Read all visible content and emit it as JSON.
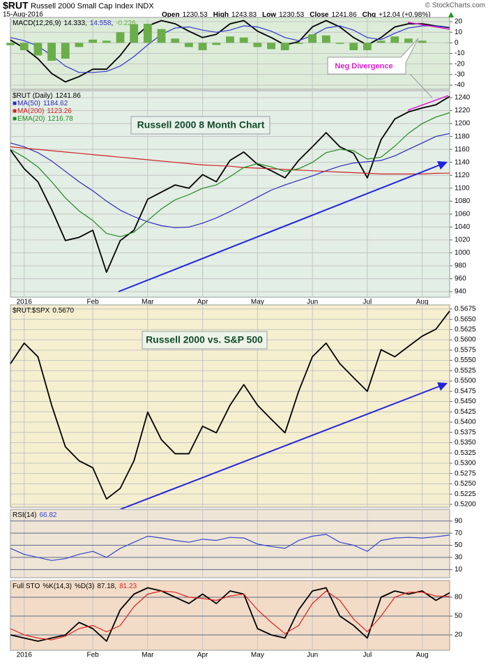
{
  "header": {
    "symbol": "$RUT",
    "name": "Russell 2000 Small Cap Index INDX",
    "date": "15-Aug-2016",
    "credit": "© StockCharts.com",
    "quote": [
      {
        "label": "Open",
        "value": 1230.53
      },
      {
        "label": "High",
        "value": 1243.83
      },
      {
        "label": "Low",
        "value": 1230.53
      },
      {
        "label": "Close",
        "value": 1241.86
      },
      {
        "label": "Chg",
        "value": 12.04,
        "value_label": "+12.04 (+0.98%)"
      }
    ]
  },
  "chart_data": [
    {
      "type": "line",
      "label": "MACD(12,26,9)",
      "annotation": "Neg Divergence",
      "grid": true,
      "categories": [
        null,
        "2016",
        null,
        null,
        null,
        null,
        "Feb",
        null,
        null,
        null,
        "Mar",
        null,
        null,
        null,
        "Apr",
        null,
        null,
        null,
        "May",
        null,
        null,
        null,
        "Jun",
        null,
        null,
        null,
        "Jul",
        null,
        null,
        null,
        "Aug",
        null,
        null
      ],
      "ylim": [
        -44,
        24
      ],
      "yticks": [
        20,
        10,
        0,
        -10,
        -20,
        -30,
        -40
      ],
      "series": [
        {
          "color": "#000000",
          "last_value": 14.333,
          "values": [
            2.7,
            -5,
            -15,
            -29,
            -37,
            -32,
            -25,
            -25,
            -12,
            4.7,
            16,
            21,
            18,
            11,
            5,
            8,
            18,
            21,
            11,
            5,
            -2,
            1,
            15,
            21,
            15,
            5,
            -2,
            5,
            15,
            18,
            18,
            16,
            14.333
          ]
        },
        {
          "color": "#3333cc",
          "last_value": 14.558,
          "values": [
            5,
            2,
            -3,
            -12,
            -22,
            -28,
            -28,
            -27,
            -22,
            -13,
            -2,
            8,
            14,
            15,
            12,
            10,
            12,
            16,
            15,
            11,
            5,
            2,
            7,
            14,
            16,
            12,
            5,
            3,
            9,
            14,
            16,
            16,
            14.558
          ]
        },
        {
          "type": "bar",
          "color": "#6aae4a",
          "last_value": -0.226,
          "values": [
            -2.3,
            -7,
            -12,
            -17,
            -15,
            -4,
            3,
            2,
            10,
            17.7,
            18,
            13,
            4,
            -4,
            -7,
            -2,
            6,
            5,
            -4,
            -6,
            -7,
            -1,
            8,
            7,
            -1,
            -7,
            -7,
            2,
            6,
            4,
            2,
            0,
            -0.226
          ]
        }
      ]
    },
    {
      "type": "line",
      "annotation": "Russell 2000 8 Month Chart",
      "grid": true,
      "categories": [
        null,
        "2016",
        null,
        null,
        null,
        null,
        "Feb",
        null,
        null,
        null,
        "Mar",
        null,
        null,
        null,
        "Apr",
        null,
        null,
        null,
        "May",
        null,
        null,
        null,
        "Jun",
        null,
        null,
        null,
        "Jul",
        null,
        null,
        null,
        "Aug",
        null,
        null
      ],
      "ylim": [
        931.4,
        1250.8
      ],
      "yticks": [
        940,
        960,
        980,
        1000,
        1020,
        1040,
        1060,
        1080,
        1100,
        1120,
        1140,
        1160,
        1180,
        1200,
        1220,
        1240
      ],
      "series": [
        {
          "name": "$RUT (Daily)",
          "color": "#000000",
          "last_value": 1241.86,
          "values": [
            1159,
            1130,
            1110,
            1067,
            1019,
            1024,
            1035,
            970,
            1019,
            1035,
            1083,
            1094,
            1105,
            1100,
            1121,
            1110,
            1143,
            1156,
            1137,
            1127,
            1116,
            1143,
            1164,
            1186,
            1164,
            1154,
            1116,
            1175,
            1207,
            1218,
            1224,
            1229,
            1241.86
          ]
        },
        {
          "name": "MA(50)",
          "color": "#2a2ab8",
          "last_value": 1184.62,
          "values": [
            1170,
            1164,
            1155,
            1142,
            1126,
            1110,
            1096,
            1080,
            1066,
            1056,
            1048,
            1042,
            1039,
            1040,
            1046,
            1054,
            1064,
            1075,
            1086,
            1097,
            1105,
            1112,
            1119,
            1127,
            1134,
            1139,
            1141,
            1143,
            1150,
            1160,
            1170,
            1180,
            1184.62
          ]
        },
        {
          "name": "MA(200)",
          "color": "#cc2222",
          "last_value": 1123.26,
          "values": [
            1164,
            1162,
            1160,
            1158,
            1156,
            1154,
            1152,
            1150,
            1148,
            1146,
            1144,
            1142,
            1140,
            1138,
            1136,
            1135,
            1134,
            1132,
            1131,
            1130,
            1129,
            1128,
            1127,
            1126,
            1125,
            1124,
            1123,
            1122,
            1122,
            1122,
            1122,
            1123,
            1123.26
          ]
        },
        {
          "name": "EMA(20)",
          "color": "#228822",
          "last_value": 1216.78,
          "values": [
            1160,
            1148,
            1133,
            1110,
            1085,
            1065,
            1050,
            1030,
            1025,
            1032,
            1050,
            1068,
            1082,
            1090,
            1100,
            1105,
            1118,
            1132,
            1138,
            1133,
            1126,
            1130,
            1140,
            1155,
            1160,
            1158,
            1145,
            1148,
            1165,
            1185,
            1200,
            1210,
            1216.78
          ]
        }
      ]
    },
    {
      "type": "line",
      "label": "$RUT:$SPX",
      "annotation": "Russell 2000 vs. S&P 500",
      "grid": true,
      "categories": [
        null,
        "2016",
        null,
        null,
        null,
        null,
        "Feb",
        null,
        null,
        null,
        "Mar",
        null,
        null,
        null,
        "Apr",
        null,
        null,
        null,
        "May",
        null,
        null,
        null,
        "Jun",
        null,
        null,
        null,
        "Jul",
        null,
        null,
        null,
        "Aug",
        null,
        null
      ],
      "ylim": [
        0.5193,
        0.5685
      ],
      "yticks": [
        {
          "value": 0.52,
          "label": "0.5200"
        },
        0.5225,
        {
          "value": 0.525,
          "label": "0.5250"
        },
        0.5275,
        {
          "value": 0.53,
          "label": "0.5300"
        },
        0.5325,
        {
          "value": 0.535,
          "label": "0.5350"
        },
        0.5375,
        {
          "value": 0.54,
          "label": "0.5400"
        },
        0.5425,
        {
          "value": 0.545,
          "label": "0.5450"
        },
        0.5475,
        {
          "value": 0.55,
          "label": "0.5500"
        },
        0.5525,
        {
          "value": 0.555,
          "label": "0.5550"
        },
        0.5575,
        {
          "value": 0.56,
          "label": "0.5600"
        },
        0.5625,
        {
          "value": 0.565,
          "label": "0.5650"
        },
        0.5675
      ],
      "series": [
        {
          "color": "#000000",
          "last_value": 0.567,
          "last_value_label": "0.5670",
          "values": [
            0.5542,
            0.5592,
            0.5559,
            0.5441,
            0.534,
            0.5306,
            0.5289,
            0.5213,
            0.5239,
            0.5306,
            0.5424,
            0.5357,
            0.5323,
            0.5323,
            0.539,
            0.5374,
            0.5441,
            0.5491,
            0.5441,
            0.5407,
            0.5374,
            0.5475,
            0.5559,
            0.5592,
            0.5542,
            0.5508,
            0.5475,
            0.5576,
            0.5559,
            0.5584,
            0.5609,
            0.5626,
            0.567
          ]
        }
      ]
    },
    {
      "type": "line",
      "label": "RSI(14)",
      "grid": true,
      "categories": [
        null,
        "2016",
        null,
        null,
        null,
        null,
        "Feb",
        null,
        null,
        null,
        "Mar",
        null,
        null,
        null,
        "Apr",
        null,
        null,
        null,
        "May",
        null,
        null,
        null,
        "Jun",
        null,
        null,
        null,
        "Jul",
        null,
        null,
        null,
        "Aug",
        null,
        null
      ],
      "ylim": [
        -3.4,
        109.2
      ],
      "yticks": [
        90,
        70,
        50,
        30,
        10
      ],
      "series": [
        {
          "color": "#3344cc",
          "last_value": 66.82,
          "values": [
            45,
            35,
            30,
            25,
            28,
            35,
            40,
            30,
            45,
            55,
            65,
            62,
            58,
            55,
            60,
            58,
            63,
            62,
            52,
            48,
            45,
            58,
            65,
            68,
            55,
            50,
            40,
            58,
            62,
            63,
            62,
            64,
            66.82
          ]
        }
      ]
    },
    {
      "type": "line",
      "label": "Full STO",
      "grid": true,
      "categories": [
        null,
        "2016",
        null,
        null,
        null,
        null,
        "Feb",
        null,
        null,
        null,
        "Mar",
        null,
        null,
        null,
        "Apr",
        null,
        null,
        null,
        "May",
        null,
        null,
        null,
        "Jun",
        null,
        null,
        null,
        "Jul",
        null,
        null,
        null,
        "Aug",
        null,
        null
      ],
      "ylim": [
        -4.4,
        106.7
      ],
      "yticks": [
        80,
        50,
        20
      ],
      "series": [
        {
          "name": "%K(14,3)",
          "color": "#000000",
          "last_value": 87.18,
          "values": [
            20,
            15,
            10,
            15,
            20,
            40,
            30,
            10,
            60,
            85,
            95,
            90,
            80,
            70,
            85,
            70,
            90,
            85,
            30,
            20,
            15,
            60,
            90,
            95,
            50,
            35,
            15,
            80,
            90,
            85,
            90,
            75,
            87.18
          ]
        },
        {
          "name": "%D(3)",
          "color": "#dd2222",
          "last_value": 81.23,
          "values": [
            30,
            20,
            15,
            12,
            18,
            30,
            35,
            25,
            35,
            65,
            85,
            90,
            88,
            80,
            78,
            75,
            82,
            85,
            60,
            40,
            22,
            35,
            70,
            90,
            75,
            45,
            25,
            50,
            80,
            88,
            88,
            82,
            81.23
          ]
        }
      ]
    }
  ]
}
